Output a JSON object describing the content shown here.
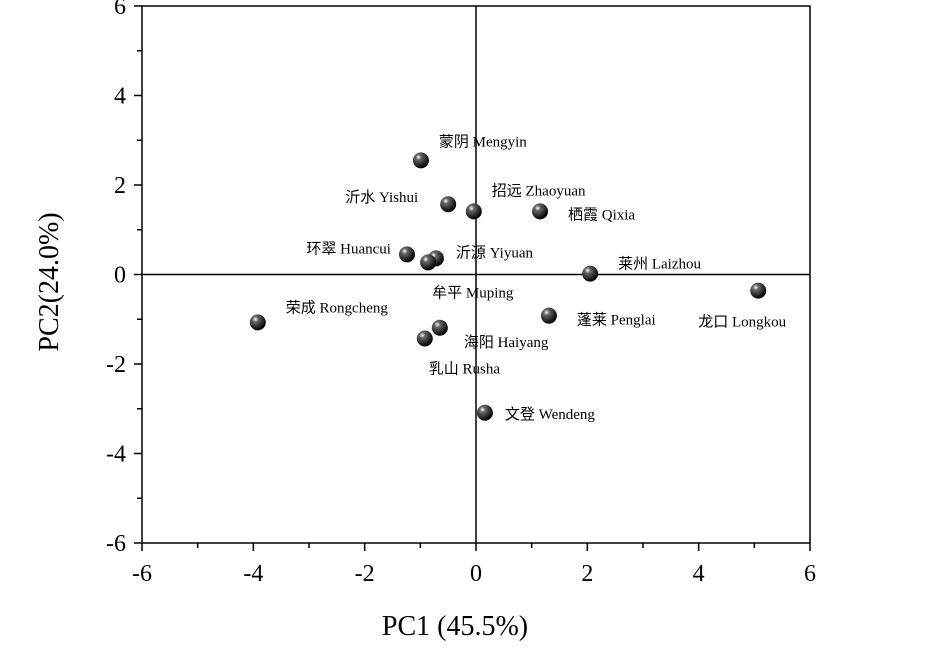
{
  "chart_data": {
    "type": "scatter",
    "title": "",
    "xlabel": "PC1 (45.5%)",
    "ylabel": "PC2(24.0%)",
    "xlim": [
      -6,
      6
    ],
    "ylim": [
      -6,
      6
    ],
    "xticks": [
      -6,
      -4,
      -2,
      0,
      2,
      4,
      6
    ],
    "yticks": [
      -6,
      -4,
      -2,
      0,
      2,
      4,
      6
    ],
    "grid": false,
    "reference_lines": {
      "x": 0,
      "y": 0
    },
    "marker_color": "#111111",
    "points": [
      {
        "label": "蒙阴 Mengyin",
        "x": -0.99,
        "y": 2.55
      },
      {
        "label": "沂水 Yishui",
        "x": -0.5,
        "y": 1.57
      },
      {
        "label": "招远 Zhaoyuan",
        "x": -0.04,
        "y": 1.41
      },
      {
        "label": "栖霞 Qixia",
        "x": 1.15,
        "y": 1.41
      },
      {
        "label": "环翠 Huancui",
        "x": -1.24,
        "y": 0.45
      },
      {
        "label": "沂源 Yiyuan",
        "x": -0.72,
        "y": 0.36
      },
      {
        "label": "牟平 Muping",
        "x": -0.86,
        "y": 0.27
      },
      {
        "label": "莱州 Laizhou",
        "x": 2.05,
        "y": 0.02
      },
      {
        "label": "龙口 Longkou",
        "x": 5.07,
        "y": -0.36
      },
      {
        "label": "荣成 Rongcheng",
        "x": -3.92,
        "y": -1.07
      },
      {
        "label": "蓬莱 Penglai",
        "x": 1.31,
        "y": -0.92
      },
      {
        "label": "海阳 Haiyang",
        "x": -0.65,
        "y": -1.19
      },
      {
        "label": "乳山 Rusha",
        "x": -0.92,
        "y": -1.43
      },
      {
        "label": "文登 Wendeng",
        "x": 0.16,
        "y": -3.09
      }
    ]
  }
}
